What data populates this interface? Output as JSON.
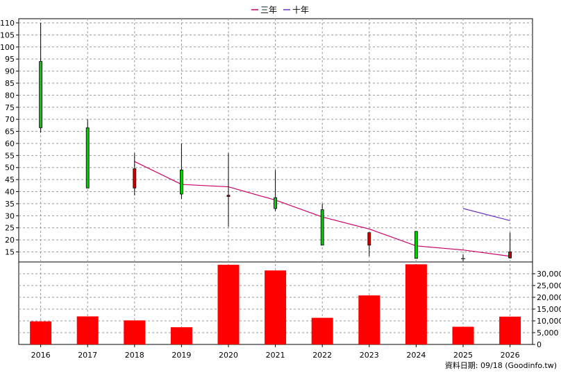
{
  "chart_data": {
    "type": "candlestick+bar",
    "legend": [
      {
        "label": "三年",
        "color": "#cc0066"
      },
      {
        "label": "十年",
        "color": "#6633cc"
      }
    ],
    "legend_position": "top-center",
    "grid": true,
    "x_categories": [
      "2016",
      "2017",
      "2018",
      "2019",
      "2020",
      "2021",
      "2022",
      "2023",
      "2024",
      "2025",
      "2026"
    ],
    "price_axis": {
      "ylim": [
        10,
        112
      ],
      "ticks": [
        15,
        20,
        25,
        30,
        35,
        40,
        45,
        50,
        55,
        60,
        65,
        70,
        75,
        80,
        85,
        90,
        95,
        100,
        105,
        110
      ],
      "side": "left"
    },
    "candles": [
      {
        "x": "2016",
        "open": 66.5,
        "close": 94,
        "high": 110,
        "low": 64.5,
        "color": "#00cc00"
      },
      {
        "x": "2017",
        "open": 41.5,
        "close": 66.5,
        "high": 70,
        "low": 41.5,
        "color": "#00cc00"
      },
      {
        "x": "2018",
        "open": 49.5,
        "close": 41.5,
        "high": 56,
        "low": 38.5,
        "color": "#cc0000"
      },
      {
        "x": "2019",
        "open": 39,
        "close": 49,
        "high": 60,
        "low": 37,
        "color": "#00cc00"
      },
      {
        "x": "2020",
        "open": 38.5,
        "close": 38,
        "high": 56,
        "low": 25.5,
        "color": "#cc0000"
      },
      {
        "x": "2021",
        "open": 33,
        "close": 37.5,
        "high": 49,
        "low": 32,
        "color": "#00cc00"
      },
      {
        "x": "2022",
        "open": 17.8,
        "close": 32.5,
        "high": 35,
        "low": 17.8,
        "color": "#00cc00"
      },
      {
        "x": "2023",
        "open": 23,
        "close": 17.8,
        "high": 23,
        "low": 13.2,
        "color": "#cc0000"
      },
      {
        "x": "2024",
        "open": 12.3,
        "close": 23.5,
        "high": 23.5,
        "low": 12.3,
        "color": "#00cc00"
      },
      {
        "x": "2025",
        "open": 12.2,
        "close": 12.2,
        "high": 14,
        "low": 11,
        "color": "#000000"
      },
      {
        "x": "2026",
        "open": 15,
        "close": 12.5,
        "high": 23,
        "low": 12.3,
        "color": "#cc0000"
      }
    ],
    "series": [
      {
        "name": "三年",
        "color": "#cc0066",
        "points": [
          [
            "2018",
            52.5
          ],
          [
            "2019",
            43
          ],
          [
            "2020",
            42
          ],
          [
            "2021",
            36.5
          ],
          [
            "2022",
            29.5
          ],
          [
            "2023",
            24.5
          ],
          [
            "2024",
            17.5
          ],
          [
            "2025",
            15.8
          ],
          [
            "2026",
            13.2
          ]
        ]
      },
      {
        "name": "十年",
        "color": "#6633cc",
        "points": [
          [
            "2025",
            33
          ],
          [
            "2026",
            28
          ]
        ]
      }
    ],
    "volume_axis": {
      "ylim": [
        0,
        35000
      ],
      "ticks": [
        0,
        5000,
        10000,
        15000,
        20000,
        25000,
        30000
      ],
      "tick_labels": [
        "0",
        "5,000",
        "10,000",
        "15,000",
        "20,000",
        "25,000",
        "30,000"
      ],
      "side": "right"
    },
    "volume_bars": {
      "color": "#ff0000",
      "values": [
        9800,
        11900,
        10200,
        7300,
        33800,
        31400,
        11300,
        20800,
        34000,
        7500,
        11800
      ]
    }
  },
  "footer": {
    "date_label": "資料日期: 09/18",
    "source_label": "(Goodinfo.tw)"
  }
}
